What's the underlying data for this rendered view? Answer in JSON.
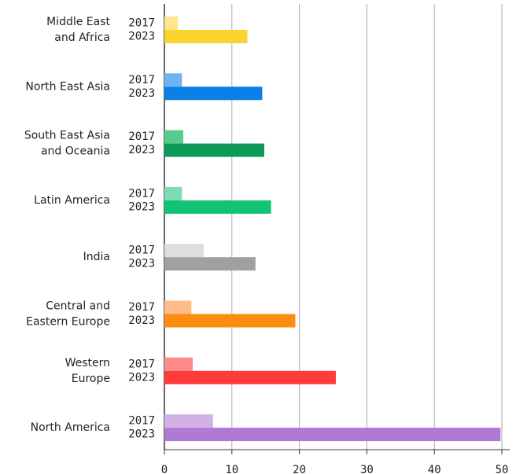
{
  "chart_data": {
    "type": "bar",
    "orientation": "horizontal",
    "categories": [
      [
        "Middle East",
        "and Africa"
      ],
      [
        "North East Asia"
      ],
      [
        "South East Asia",
        "and Oceania"
      ],
      [
        "Latin America"
      ],
      [
        "India"
      ],
      [
        "Central and",
        "Eastern Europe"
      ],
      [
        "Western",
        "Europe"
      ],
      [
        "North America"
      ]
    ],
    "series": [
      {
        "name": "2017",
        "colors": [
          "#fde68c",
          "#6fb3f2",
          "#5acb8e",
          "#7fdcb2",
          "#dedede",
          "#ffbb8a",
          "#ff8a8a",
          "#d2b2e6"
        ],
        "values": [
          2.0,
          2.6,
          2.8,
          2.6,
          5.8,
          4.0,
          4.2,
          7.2
        ]
      },
      {
        "name": "2023",
        "colors": [
          "#fbd230",
          "#0b7fe8",
          "#0e9a56",
          "#13c272",
          "#a0a0a0",
          "#ff8c12",
          "#ff3b3b",
          "#b07ad4"
        ],
        "values": [
          12.3,
          14.5,
          14.8,
          15.8,
          13.5,
          19.4,
          25.4,
          49.8
        ]
      }
    ],
    "xlim": [
      0,
      50
    ],
    "xticks": [
      0,
      10,
      20,
      30,
      40,
      50
    ],
    "grid": true
  }
}
